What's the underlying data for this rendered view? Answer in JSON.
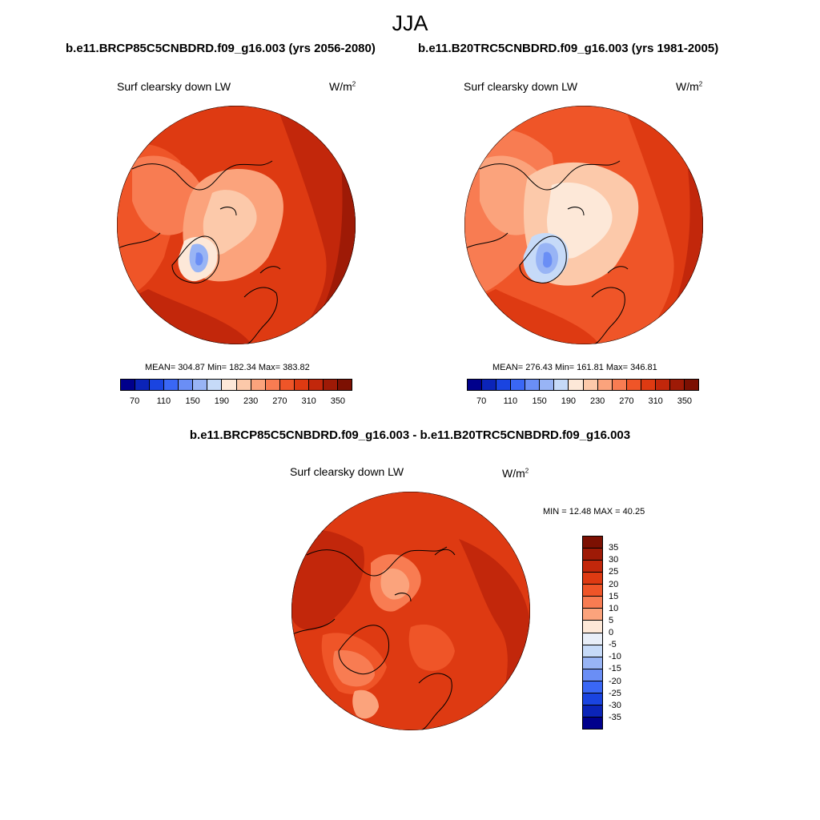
{
  "figure": {
    "season": "JJA",
    "panels": [
      {
        "run_label": "b.e11.BRCP85C5CNBDRD.f09_g16.003 (yrs 2056-2080)",
        "variable": "Surf clearsky down LW",
        "units_base": "W/m",
        "units_exp": "2",
        "stats_text": "MEAN= 304.87  Min= 182.34  Max= 383.82",
        "mean": 304.87,
        "min": 182.34,
        "max": 383.82
      },
      {
        "run_label": "b.e11.B20TRC5CNBDRD.f09_g16.003 (yrs 1981-2005)",
        "variable": "Surf clearsky down LW",
        "units_base": "W/m",
        "units_exp": "2",
        "stats_text": "MEAN= 276.43  Min= 161.81  Max= 346.81",
        "mean": 276.43,
        "min": 161.81,
        "max": 346.81
      }
    ],
    "difference": {
      "title": "b.e11.BRCP85C5CNBDRD.f09_g16.003 - b.e11.B20TRC5CNBDRD.f09_g16.003",
      "variable": "Surf clearsky down LW",
      "units_base": "W/m",
      "units_exp": "2",
      "minmax_text": "MIN =  12.48 MAX =  40.25",
      "min": 12.48,
      "max": 40.25
    }
  },
  "colorbar_abs": {
    "labels": [
      "70",
      "110",
      "150",
      "190",
      "230",
      "270",
      "310",
      "350"
    ],
    "colors": [
      "#00008c",
      "#0b24b8",
      "#1a44e0",
      "#3a67f5",
      "#6a8ef5",
      "#98b4f5",
      "#c6daf8",
      "#fde8d8",
      "#fcc9aa",
      "#fba37c",
      "#f87c52",
      "#ef5528",
      "#de3a12",
      "#c2270b",
      "#9e1a06",
      "#7c1002"
    ]
  },
  "colorbar_diff": {
    "labels": [
      "35",
      "30",
      "25",
      "20",
      "15",
      "10",
      "5",
      "0",
      "-5",
      "-10",
      "-15",
      "-20",
      "-25",
      "-30",
      "-35"
    ],
    "colors": [
      "#7c1002",
      "#9e1a06",
      "#c2270b",
      "#de3a12",
      "#ef5528",
      "#f87c52",
      "#fba37c",
      "#fde8d8",
      "#e8eef8",
      "#c6daf8",
      "#98b4f5",
      "#6a8ef5",
      "#3a67f5",
      "#1a44e0",
      "#0b24b8",
      "#00008c"
    ]
  }
}
